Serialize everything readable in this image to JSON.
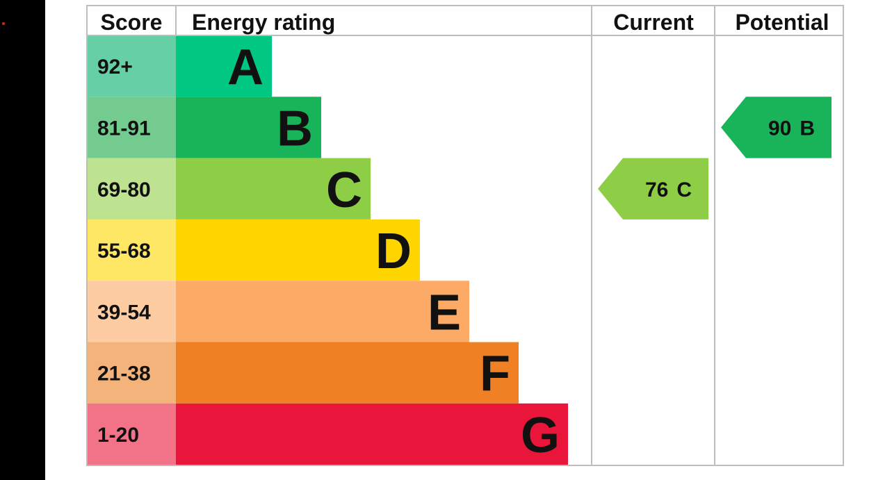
{
  "chart_data": {
    "type": "table",
    "headers": {
      "score": "Score",
      "rating": "Energy rating",
      "current": "Current",
      "potential": "Potential"
    },
    "bands": [
      {
        "letter": "A",
        "range": "92+",
        "color": "#00c781",
        "score_color": "#66cfa6"
      },
      {
        "letter": "B",
        "range": "81-91",
        "color": "#19b459",
        "score_color": "#73cb8f"
      },
      {
        "letter": "C",
        "range": "69-80",
        "color": "#8dce46",
        "score_color": "#bde290"
      },
      {
        "letter": "D",
        "range": "55-68",
        "color": "#ffd500",
        "score_color": "#ffe766"
      },
      {
        "letter": "E",
        "range": "39-54",
        "color": "#fcaa65",
        "score_color": "#fdcca2"
      },
      {
        "letter": "F",
        "range": "21-38",
        "color": "#ef8023",
        "score_color": "#f4b37b"
      },
      {
        "letter": "G",
        "range": "1-20",
        "color": "#e9153b",
        "score_color": "#f27388"
      }
    ],
    "current": {
      "value": 76,
      "letter": "C",
      "color": "#8dce46"
    },
    "potential": {
      "value": 90,
      "letter": "B",
      "color": "#19b459"
    }
  }
}
